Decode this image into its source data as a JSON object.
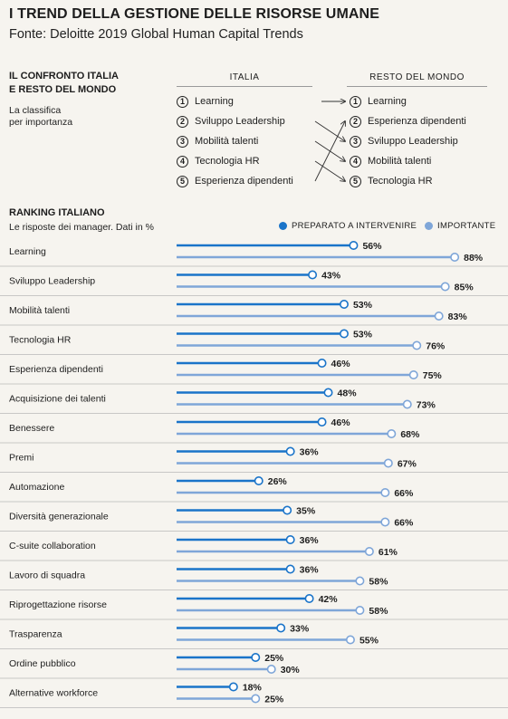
{
  "header": {
    "title": "I TREND DELLA GESTIONE DELLE RISORSE UMANE",
    "subtitle": "Fonte: Deloitte 2019 Global Human Capital Trends"
  },
  "comparison": {
    "heading_line1": "IL CONFRONTO ITALIA",
    "heading_line2": "E RESTO DEL MONDO",
    "sub_line1": "La classifica",
    "sub_line2": "per importanza",
    "italia_label": "ITALIA",
    "world_label": "RESTO DEL MONDO",
    "italia": [
      {
        "rank": "1",
        "label": "Learning"
      },
      {
        "rank": "2",
        "label": "Sviluppo Leadership"
      },
      {
        "rank": "3",
        "label": "Mobilità talenti"
      },
      {
        "rank": "4",
        "label": "Tecnologia HR"
      },
      {
        "rank": "5",
        "label": "Esperienza dipendenti"
      }
    ],
    "world": [
      {
        "rank": "1",
        "label": "Learning"
      },
      {
        "rank": "2",
        "label": "Esperienza dipendenti"
      },
      {
        "rank": "3",
        "label": "Sviluppo Leadership"
      },
      {
        "rank": "4",
        "label": "Mobilità talenti"
      },
      {
        "rank": "5",
        "label": "Tecnologia HR"
      }
    ],
    "links": [
      [
        1,
        1
      ],
      [
        2,
        3
      ],
      [
        3,
        4
      ],
      [
        4,
        5
      ],
      [
        5,
        2
      ]
    ]
  },
  "ranking": {
    "heading": "RANKING ITALIANO",
    "sub": "Le risposte dei manager. Dati in %"
  },
  "colors": {
    "preparato": "#1a74c9",
    "importante": "#7fa6d8",
    "rule": "#b9b9b9"
  },
  "chart_data": {
    "type": "bar",
    "series": [
      {
        "name": "PREPARATO A INTERVENIRE",
        "values": [
          56,
          43,
          53,
          53,
          46,
          48,
          46,
          36,
          26,
          35,
          36,
          36,
          42,
          33,
          25,
          18
        ]
      },
      {
        "name": "IMPORTANTE",
        "values": [
          88,
          85,
          83,
          76,
          75,
          73,
          68,
          67,
          66,
          66,
          61,
          58,
          58,
          55,
          30,
          25
        ]
      }
    ],
    "categories": [
      "Learning",
      "Sviluppo Leadership",
      "Mobilità talenti",
      "Tecnologia HR",
      "Esperienza dipendenti",
      "Acquisizione dei talenti",
      "Benessere",
      "Premi",
      "Automazione",
      "Diversità generazionale",
      "C-suite collaboration",
      "Lavoro di squadra",
      "Riprogettazione risorse",
      "Trasparenza",
      "Ordine pubblico",
      "Alternative workforce"
    ],
    "unit": "%",
    "xlim": [
      0,
      100
    ]
  }
}
